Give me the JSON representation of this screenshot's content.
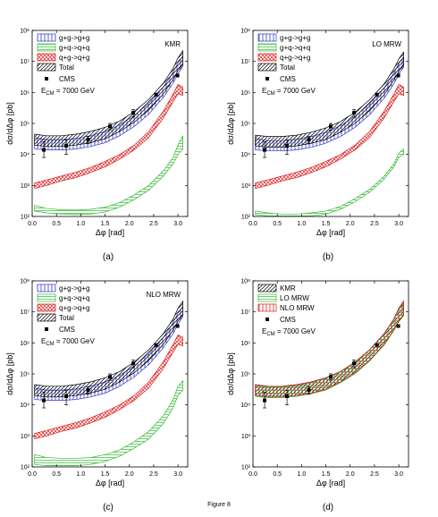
{
  "figure_caption": "Figure 8",
  "chart_data": [
    {
      "panel": "(a)",
      "type": "area",
      "label": "KMR",
      "xlabel": "Δφ [rad]",
      "ylabel": "dσ/dΔφ [pb]",
      "xlim": [
        0,
        3.2
      ],
      "ylim": [
        100,
        100000000
      ],
      "yscale": "log",
      "grid": false,
      "legend_placement": "top-left",
      "xticks": [
        "0.0",
        "0.5",
        "1.0",
        "1.5",
        "2.0",
        "2.5",
        "3.0"
      ],
      "yticks": [
        "10²",
        "10³",
        "10⁴",
        "10⁵",
        "10⁶",
        "10⁷",
        "10⁸"
      ],
      "x": [
        0.05,
        0.3,
        0.6,
        0.9,
        1.2,
        1.5,
        1.8,
        2.1,
        2.4,
        2.7,
        2.9,
        3.0,
        3.1
      ],
      "series": [
        {
          "name": "g+g->g+g",
          "color": "#3333cc",
          "pattern": "vertical",
          "lower": [
            15000,
            14000,
            14000,
            15000,
            18000,
            24000,
            40000,
            80000,
            200000,
            700000,
            2000000,
            4000000,
            7000000
          ],
          "upper": [
            35000,
            30000,
            30000,
            33000,
            40000,
            55000,
            90000,
            180000,
            450000,
            1500000,
            4500000,
            9000000,
            15000000
          ]
        },
        {
          "name": "g+q->q+q",
          "color": "#33bb33",
          "pattern": "horizontal",
          "lower": [
            150,
            130,
            120,
            115,
            120,
            140,
            200,
            350,
            700,
            2000,
            5000,
            10000,
            15000
          ],
          "upper": [
            230,
            180,
            165,
            160,
            170,
            200,
            280,
            500,
            1000,
            3000,
            8000,
            20000,
            40000
          ]
        },
        {
          "name": "q+g->q+g",
          "color": "#dd2222",
          "pattern": "cross",
          "lower": [
            800,
            1000,
            1400,
            1800,
            2600,
            4000,
            7000,
            14000,
            35000,
            150000,
            500000,
            900000,
            800000
          ],
          "upper": [
            1200,
            1500,
            2000,
            2700,
            3800,
            6000,
            10000,
            20000,
            55000,
            250000,
            900000,
            1800000,
            1500000
          ]
        },
        {
          "name": "Total",
          "color": "#000000",
          "pattern": "diagonal",
          "lower": [
            20000,
            18000,
            18000,
            20000,
            24000,
            32000,
            55000,
            110000,
            270000,
            900000,
            2600000,
            5000000,
            8000000
          ],
          "upper": [
            45000,
            40000,
            40000,
            45000,
            55000,
            75000,
            120000,
            240000,
            600000,
            2000000,
            6000000,
            13000000,
            22000000
          ]
        }
      ],
      "cms": {
        "name": "CMS",
        "x": [
          0.24,
          0.7,
          1.15,
          1.6,
          2.08,
          2.55,
          2.99
        ],
        "y": [
          14000,
          19000,
          30000,
          80000,
          220000,
          850000,
          3500000
        ],
        "err_lo": [
          6000,
          9000,
          8000,
          18000,
          60000,
          0,
          0
        ],
        "err_hi": [
          12000,
          10000,
          8000,
          20000,
          60000,
          0,
          0
        ]
      },
      "annotation": "E_CM = 7000 GeV"
    },
    {
      "panel": "(b)",
      "type": "area",
      "label": "LO MRW",
      "xlabel": "Δφ [rad]",
      "ylabel": "dσ/dΔφ [pb]",
      "xlim": [
        0,
        3.2
      ],
      "ylim": [
        100,
        100000000
      ],
      "yscale": "log",
      "grid": false,
      "legend_placement": "top-left",
      "xticks": [
        "0.0",
        "0.5",
        "1.0",
        "1.5",
        "2.0",
        "2.5",
        "3.0"
      ],
      "yticks": [
        "10²",
        "10³",
        "10⁴",
        "10⁵",
        "10⁶",
        "10⁷",
        "10⁸"
      ],
      "x": [
        0.05,
        0.3,
        0.6,
        0.9,
        1.2,
        1.5,
        1.8,
        2.1,
        2.4,
        2.7,
        2.9,
        3.0,
        3.1
      ],
      "series": [
        {
          "name": "g+g->g+g",
          "color": "#3333cc",
          "pattern": "vertical",
          "lower": [
            14000,
            13000,
            13000,
            14000,
            17000,
            23000,
            38000,
            75000,
            190000,
            650000,
            1900000,
            3800000,
            6500000
          ],
          "upper": [
            33000,
            28000,
            28000,
            31000,
            38000,
            52000,
            85000,
            170000,
            430000,
            1400000,
            4300000,
            8500000,
            14000000
          ]
        },
        {
          "name": "g+q->q+q",
          "color": "#33bb33",
          "pattern": "horizontal",
          "lower": [
            115,
            105,
            100,
            100,
            105,
            120,
            170,
            300,
            600,
            1600,
            4000,
            8000,
            10000
          ],
          "upper": [
            150,
            130,
            120,
            120,
            130,
            150,
            210,
            380,
            750,
            2000,
            5000,
            11000,
            15000
          ]
        },
        {
          "name": "q+g->q+g",
          "color": "#dd2222",
          "pattern": "cross",
          "lower": [
            800,
            1000,
            1400,
            1800,
            2600,
            4000,
            7000,
            14000,
            35000,
            150000,
            500000,
            900000,
            800000
          ],
          "upper": [
            1200,
            1500,
            2000,
            2700,
            3800,
            6000,
            10000,
            20000,
            55000,
            250000,
            900000,
            1800000,
            1500000
          ]
        },
        {
          "name": "Total",
          "color": "#000000",
          "pattern": "diagonal",
          "lower": [
            19000,
            17000,
            17000,
            19000,
            23000,
            30000,
            52000,
            100000,
            260000,
            850000,
            2500000,
            4800000,
            7500000
          ],
          "upper": [
            42000,
            38000,
            38000,
            42000,
            52000,
            72000,
            115000,
            230000,
            580000,
            1900000,
            5800000,
            12000000,
            20000000
          ]
        }
      ],
      "cms": {
        "name": "CMS",
        "x": [
          0.24,
          0.7,
          1.15,
          1.6,
          2.08,
          2.55,
          2.99
        ],
        "y": [
          14000,
          19000,
          30000,
          80000,
          220000,
          850000,
          3500000
        ],
        "err_lo": [
          6000,
          9000,
          8000,
          18000,
          60000,
          0,
          0
        ],
        "err_hi": [
          12000,
          10000,
          8000,
          20000,
          60000,
          0,
          0
        ]
      },
      "annotation": "E_CM = 7000 GeV"
    },
    {
      "panel": "(c)",
      "type": "area",
      "label": "NLO MRW",
      "xlabel": "Δφ [rad]",
      "ylabel": "dσ/dΔφ [pb]",
      "xlim": [
        0,
        3.2
      ],
      "ylim": [
        100,
        100000000
      ],
      "yscale": "log",
      "grid": false,
      "legend_placement": "top-left",
      "xticks": [
        "0.0",
        "0.5",
        "1.0",
        "1.5",
        "2.0",
        "2.5",
        "3.0"
      ],
      "yticks": [
        "10²",
        "10³",
        "10⁴",
        "10⁵",
        "10⁶",
        "10⁷",
        "10⁸"
      ],
      "x": [
        0.05,
        0.3,
        0.6,
        0.9,
        1.2,
        1.5,
        1.8,
        2.1,
        2.4,
        2.7,
        2.9,
        3.0,
        3.1
      ],
      "series": [
        {
          "name": "g+g->g+g",
          "color": "#3333cc",
          "pattern": "vertical",
          "lower": [
            15000,
            14000,
            14000,
            15000,
            18000,
            24000,
            40000,
            80000,
            200000,
            700000,
            2000000,
            4000000,
            7000000
          ],
          "upper": [
            35000,
            30000,
            30000,
            33000,
            40000,
            55000,
            90000,
            180000,
            450000,
            1500000,
            4500000,
            9000000,
            15000000
          ]
        },
        {
          "name": "g+q->q+q",
          "color": "#33bb33",
          "pattern": "horizontal",
          "lower": [
            120,
            110,
            110,
            110,
            120,
            150,
            220,
            400,
            800,
            2500,
            8000,
            20000,
            30000
          ],
          "upper": [
            250,
            200,
            190,
            190,
            200,
            250,
            350,
            650,
            1400,
            4500,
            15000,
            40000,
            60000
          ]
        },
        {
          "name": "q+g->q+g",
          "color": "#dd2222",
          "pattern": "cross",
          "lower": [
            800,
            1000,
            1400,
            1800,
            2600,
            4000,
            7000,
            14000,
            35000,
            150000,
            500000,
            900000,
            800000
          ],
          "upper": [
            1200,
            1500,
            2000,
            2700,
            3800,
            6000,
            10000,
            20000,
            55000,
            250000,
            900000,
            1800000,
            1500000
          ]
        },
        {
          "name": "Total",
          "color": "#000000",
          "pattern": "diagonal",
          "lower": [
            20000,
            18000,
            18000,
            20000,
            24000,
            32000,
            55000,
            110000,
            270000,
            900000,
            2600000,
            5000000,
            8000000
          ],
          "upper": [
            45000,
            40000,
            40000,
            45000,
            55000,
            75000,
            120000,
            240000,
            600000,
            2000000,
            6000000,
            13000000,
            22000000
          ]
        }
      ],
      "cms": {
        "name": "CMS",
        "x": [
          0.24,
          0.7,
          1.15,
          1.6,
          2.08,
          2.55,
          2.99
        ],
        "y": [
          14000,
          19000,
          30000,
          80000,
          220000,
          850000,
          3500000
        ],
        "err_lo": [
          6000,
          9000,
          8000,
          18000,
          60000,
          0,
          0
        ],
        "err_hi": [
          12000,
          10000,
          8000,
          20000,
          60000,
          0,
          0
        ]
      },
      "annotation": "E_CM = 7000 GeV"
    },
    {
      "panel": "(d)",
      "type": "area",
      "label": "",
      "xlabel": "Δφ [rad]",
      "ylabel": "dσ/dΔφ [pb]",
      "xlim": [
        0,
        3.2
      ],
      "ylim": [
        100,
        100000000
      ],
      "yscale": "log",
      "grid": false,
      "legend_placement": "top-left",
      "xticks": [
        "0.0",
        "0.5",
        "1.0",
        "1.5",
        "2.0",
        "2.5",
        "3.0"
      ],
      "yticks": [
        "10²",
        "10³",
        "10⁴",
        "10⁵",
        "10⁶",
        "10⁷",
        "10⁸"
      ],
      "x": [
        0.05,
        0.3,
        0.6,
        0.9,
        1.2,
        1.5,
        1.8,
        2.1,
        2.4,
        2.7,
        2.9,
        3.0,
        3.1
      ],
      "series": [
        {
          "name": "KMR",
          "color": "#000000",
          "pattern": "diagonal",
          "lower": [
            20000,
            18000,
            18000,
            20000,
            24000,
            32000,
            55000,
            110000,
            270000,
            900000,
            2600000,
            5000000,
            8000000
          ],
          "upper": [
            45000,
            40000,
            40000,
            45000,
            55000,
            75000,
            120000,
            240000,
            600000,
            2000000,
            6000000,
            13000000,
            22000000
          ]
        },
        {
          "name": "LO MRW",
          "color": "#33bb33",
          "pattern": "horizontal",
          "lower": [
            19000,
            17000,
            17000,
            19000,
            23000,
            30000,
            52000,
            100000,
            260000,
            850000,
            2500000,
            4800000,
            7500000
          ],
          "upper": [
            42000,
            38000,
            38000,
            42000,
            52000,
            72000,
            115000,
            230000,
            580000,
            1900000,
            5800000,
            12000000,
            20000000
          ]
        },
        {
          "name": "NLO MRW",
          "color": "#dd2222",
          "pattern": "vertical",
          "lower": [
            20000,
            18000,
            18000,
            20000,
            24000,
            32000,
            55000,
            110000,
            270000,
            900000,
            2600000,
            5000000,
            8000000
          ],
          "upper": [
            45000,
            40000,
            40000,
            45000,
            55000,
            75000,
            120000,
            240000,
            600000,
            2000000,
            6000000,
            13000000,
            22000000
          ]
        }
      ],
      "cms": {
        "name": "CMS",
        "x": [
          0.24,
          0.7,
          1.15,
          1.6,
          2.08,
          2.55,
          2.99
        ],
        "y": [
          14000,
          19000,
          30000,
          80000,
          220000,
          850000,
          3500000
        ],
        "err_lo": [
          6000,
          9000,
          8000,
          18000,
          60000,
          0,
          0
        ],
        "err_hi": [
          12000,
          10000,
          8000,
          20000,
          60000,
          0,
          0
        ]
      },
      "annotation": "E_CM = 7000 GeV"
    }
  ]
}
